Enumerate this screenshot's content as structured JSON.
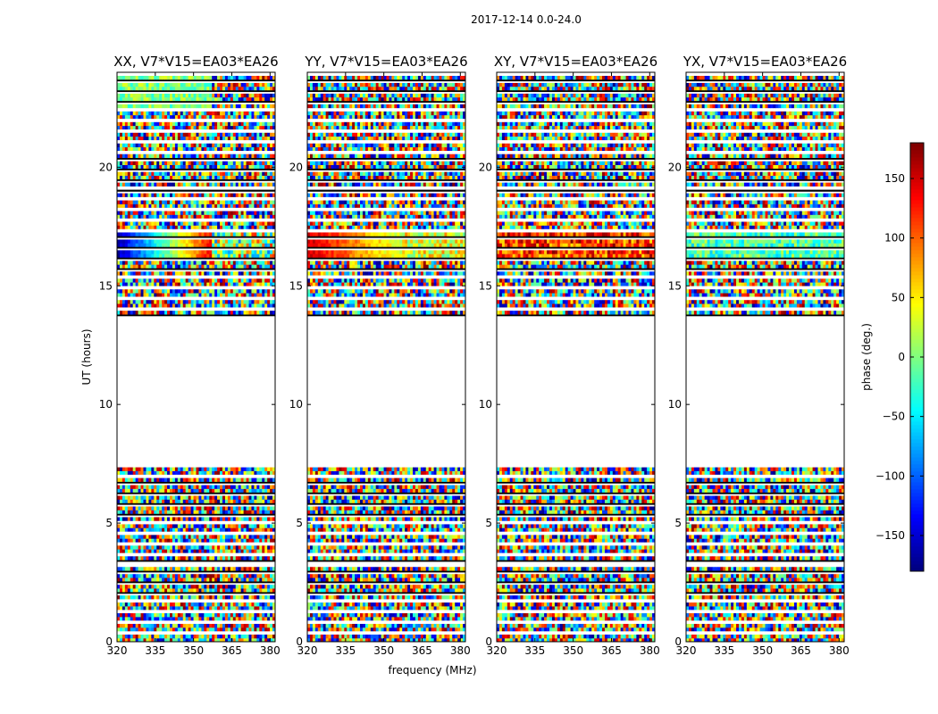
{
  "figure": {
    "suptitle": "2017-12-14 0.0-24.0",
    "xlabel": "frequency (MHz)",
    "ylabel": "UT (hours)",
    "colorbar_label": "phase (deg.)"
  },
  "chart_data": {
    "type": "heatmap",
    "title": "2017-12-14 0.0-24.0",
    "xlabel": "frequency (MHz)",
    "ylabel": "UT (hours)",
    "xlim": [
      320,
      382
    ],
    "ylim": [
      0,
      24
    ],
    "xticks": [
      320,
      335,
      350,
      365,
      380
    ],
    "yticks": [
      0,
      5,
      10,
      15,
      20
    ],
    "colormap": "jet",
    "colorbar": {
      "label": "phase (deg.)",
      "range": [
        -180,
        180
      ],
      "ticks": [
        -150,
        -100,
        -50,
        0,
        50,
        100,
        150
      ],
      "tick_labels": [
        "−150",
        "−100",
        "−50",
        "0",
        "50",
        "100",
        "150"
      ]
    },
    "empty_ut_range_hours": [
      7.5,
      13.6
    ],
    "panels": [
      {
        "name": "XX, V7*V15=EA03*EA26",
        "content": "phase noise; coherent band ~16.0-17.2 h: blue/dark-red at low freq shifting through red to orange/yellow at high freq; light-green band ~22.3-24 h low freq"
      },
      {
        "name": "YY, V7*V15=EA03*EA26",
        "content": "phase noise; coherent band ~16.0-17.2 h: dark-red/red at low freq to yellow/green at high freq"
      },
      {
        "name": "XY, V7*V15=EA03*EA26",
        "content": "phase noise; partially coherent band ~16.0-17.2 h red/orange"
      },
      {
        "name": "YX, V7*V15=EA03*EA26",
        "content": "phase noise; coherent band ~16.0-17.2 h green/cyan"
      }
    ]
  }
}
